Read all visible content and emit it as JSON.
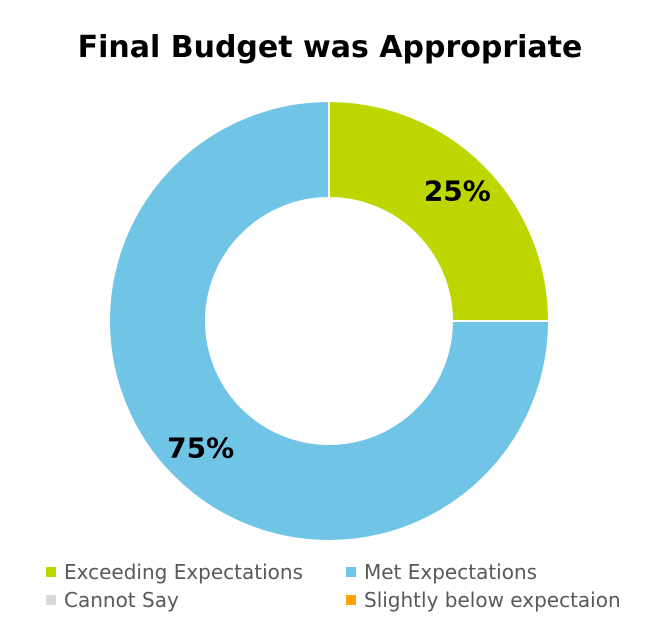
{
  "chart_data": {
    "type": "pie",
    "title": "Final Budget was Appropriate",
    "categories": [
      "Exceeding Expectations",
      "Met Expectations",
      "Cannot Say",
      "Slightly below expectaion"
    ],
    "values": [
      25,
      75,
      0,
      0
    ],
    "data_labels": [
      "25%",
      "75%",
      "",
      ""
    ],
    "colors": [
      "#bdd600",
      "#70c5e6",
      "#d9d9d9",
      "#ffa500"
    ],
    "donut": true,
    "legend_position": "bottom"
  }
}
